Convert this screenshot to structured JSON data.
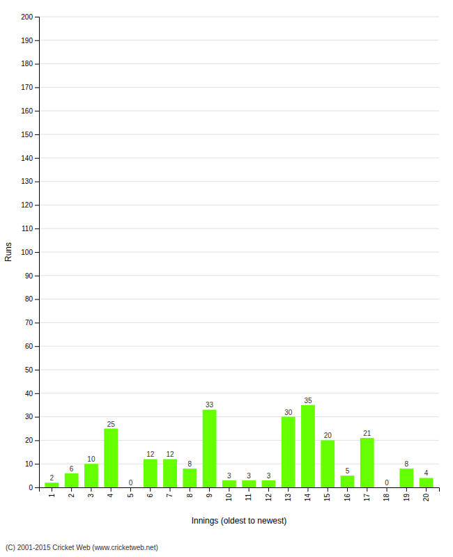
{
  "chart_data": {
    "type": "bar",
    "categories": [
      "1",
      "2",
      "3",
      "4",
      "5",
      "6",
      "7",
      "8",
      "9",
      "10",
      "11",
      "12",
      "13",
      "14",
      "15",
      "16",
      "17",
      "18",
      "19",
      "20"
    ],
    "values": [
      2,
      6,
      10,
      25,
      0,
      12,
      12,
      8,
      33,
      3,
      3,
      3,
      30,
      35,
      20,
      5,
      21,
      0,
      8,
      4
    ],
    "color": "#66ff00",
    "x_label": "Innings (oldest to newest)",
    "y_label": "Runs",
    "ylim": [
      0,
      200
    ],
    "yticks": [
      0,
      10,
      20,
      30,
      40,
      50,
      60,
      70,
      80,
      90,
      100,
      110,
      120,
      130,
      140,
      150,
      160,
      170,
      180,
      190,
      200
    ],
    "grid": true,
    "data_labels": true,
    "annotations": [
      "(C) 2001-2015 Cricket Web (www.cricketweb.net)"
    ]
  }
}
